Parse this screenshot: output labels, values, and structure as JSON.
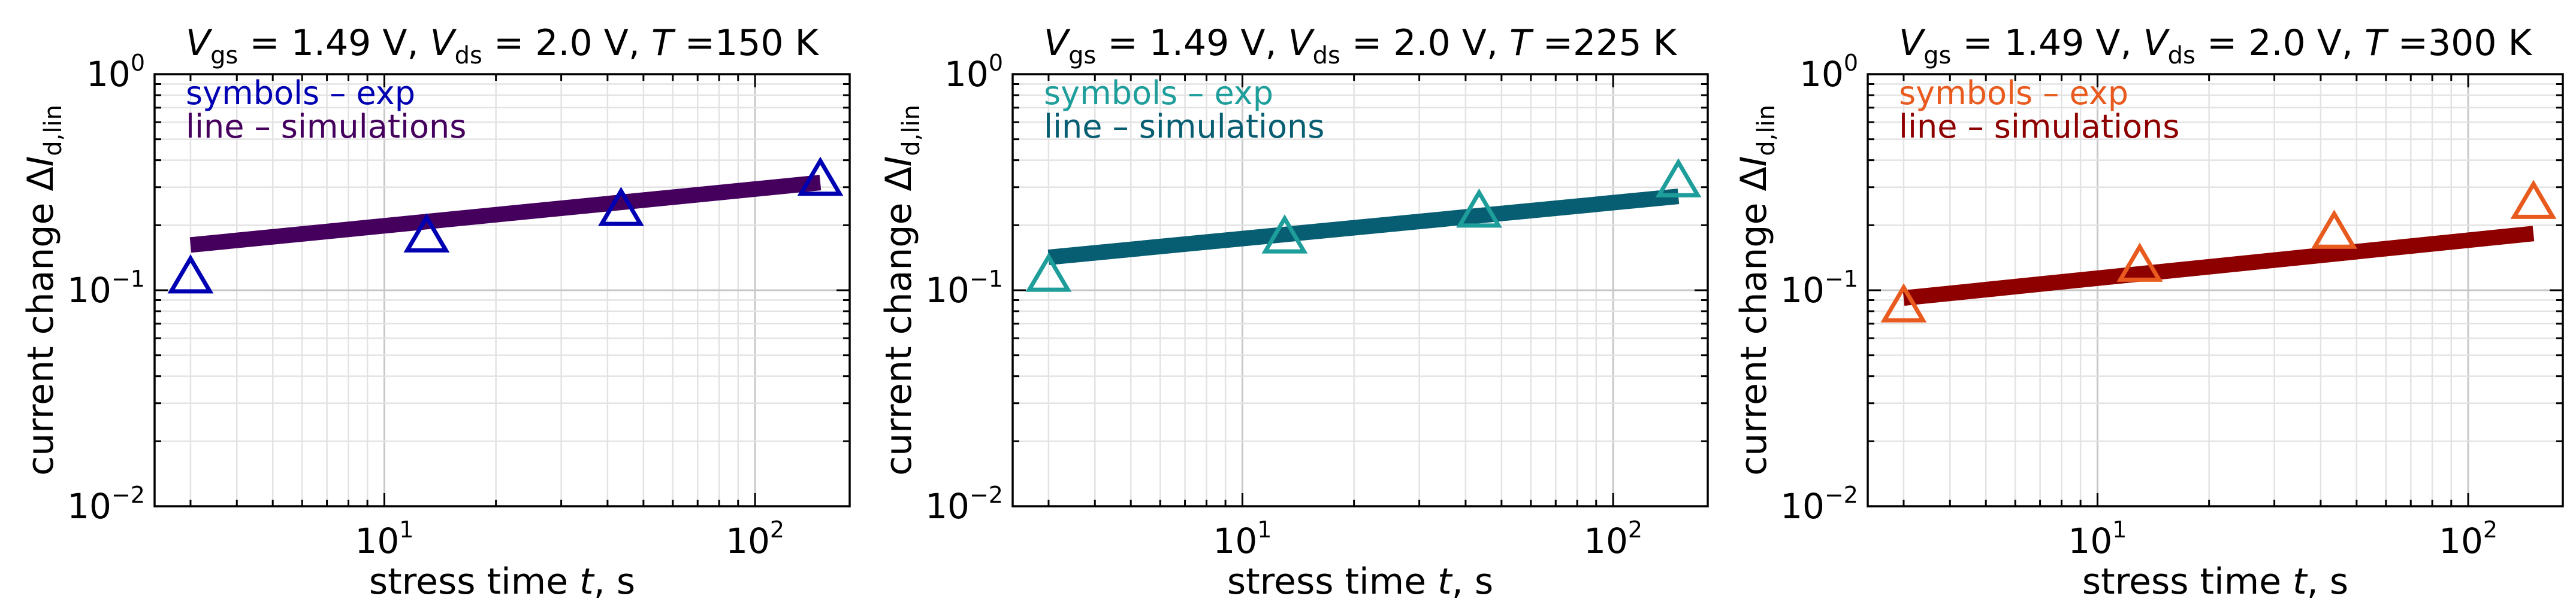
{
  "figure": {
    "shared": {
      "xlabel": "stress time t, s",
      "ylabel": "current change ΔI_d,lin",
      "x_ticks": [
        {
          "value": 10,
          "label": "10",
          "exp": "1"
        },
        {
          "value": 100,
          "label": "10",
          "exp": "2"
        }
      ],
      "y_ticks": [
        {
          "value": 1,
          "label": "10",
          "exp": "0"
        },
        {
          "value": 0.1,
          "label": "10",
          "exp": "−1"
        },
        {
          "value": 0.01,
          "label": "10",
          "exp": "−2"
        }
      ]
    }
  },
  "chart_data": [
    {
      "type": "scatter",
      "title": "V_gs = 1.49 V, V_ds = 2.0 V, T =150 K",
      "title_parts": {
        "vgs": "1.49",
        "vds": "2.0",
        "temp": "150"
      },
      "xlabel": "stress time t, s",
      "ylabel": "current change ΔI_d,lin",
      "xscale": "log",
      "yscale": "log",
      "xlim": [
        2.4,
        180
      ],
      "ylim": [
        0.01,
        1
      ],
      "grid": true,
      "legend": "top-left",
      "legend_entries": [
        "symbols – exp",
        "line – simulations"
      ],
      "symbol_color": "#0000b3",
      "line_color": "#45005e",
      "series": [
        {
          "name": "symbols – exp",
          "kind": "markers",
          "x": [
            3,
            13,
            43.5,
            150
          ],
          "y": [
            0.113,
            0.175,
            0.232,
            0.32
          ]
        },
        {
          "name": "line – simulations",
          "kind": "line",
          "x": [
            3,
            150
          ],
          "y": [
            0.162,
            0.315
          ]
        }
      ]
    },
    {
      "type": "scatter",
      "title": "V_gs = 1.49 V, V_ds = 2.0 V, T =225 K",
      "title_parts": {
        "vgs": "1.49",
        "vds": "2.0",
        "temp": "225"
      },
      "xlabel": "stress time t, s",
      "ylabel": "current change ΔI_d,lin",
      "xscale": "log",
      "yscale": "log",
      "xlim": [
        2.4,
        180
      ],
      "ylim": [
        0.01,
        1
      ],
      "grid": true,
      "legend": "top-left",
      "legend_entries": [
        "symbols – exp",
        "line – simulations"
      ],
      "symbol_color": "#1e9e9b",
      "line_color": "#075e72",
      "series": [
        {
          "name": "symbols – exp",
          "kind": "markers",
          "x": [
            3,
            13,
            43.5,
            150
          ],
          "y": [
            0.115,
            0.173,
            0.228,
            0.315
          ]
        },
        {
          "name": "line – simulations",
          "kind": "line",
          "x": [
            3,
            150
          ],
          "y": [
            0.142,
            0.272
          ]
        }
      ]
    },
    {
      "type": "scatter",
      "title": "V_gs = 1.49 V, V_ds = 2.0 V, T =300 K",
      "title_parts": {
        "vgs": "1.49",
        "vds": "2.0",
        "temp": "300"
      },
      "xlabel": "stress time t, s",
      "ylabel": "current change ΔI_d,lin",
      "xscale": "log",
      "yscale": "log",
      "xlim": [
        2.4,
        180
      ],
      "ylim": [
        0.01,
        1
      ],
      "grid": true,
      "legend": "top-left",
      "legend_entries": [
        "symbols – exp",
        "line – simulations"
      ],
      "symbol_color": "#e85a1e",
      "line_color": "#8e0000",
      "series": [
        {
          "name": "symbols – exp",
          "kind": "markers",
          "x": [
            3,
            13,
            43.5,
            150
          ],
          "y": [
            0.083,
            0.128,
            0.182,
            0.25
          ]
        },
        {
          "name": "line – simulations",
          "kind": "line",
          "x": [
            3,
            150
          ],
          "y": [
            0.092,
            0.183
          ]
        }
      ]
    }
  ]
}
